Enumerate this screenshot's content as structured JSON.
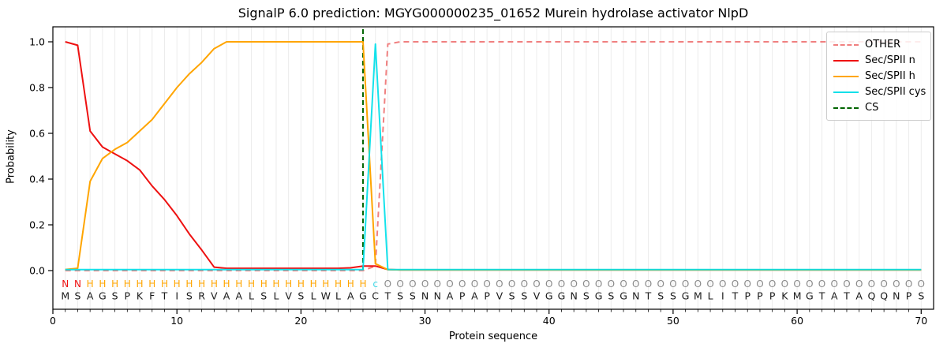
{
  "title": "SignalP 6.0 prediction: MGYG000000235_01652 Murein hydrolase activator NlpD",
  "axes": {
    "x_label": "Protein sequence",
    "y_label": "Probability",
    "x_tick_labels": [
      0,
      10,
      20,
      30,
      40,
      50,
      60,
      70
    ],
    "y_tick_labels": [
      "0.0",
      "0.2",
      "0.4",
      "0.6",
      "0.8",
      "1.0"
    ]
  },
  "legend": {
    "items": [
      {
        "label": "OTHER",
        "color": "#f08080",
        "dashed": true
      },
      {
        "label": "Sec/SPII n",
        "color": "#ee1111",
        "dashed": false
      },
      {
        "label": "Sec/SPII h",
        "color": "#ffa500",
        "dashed": false
      },
      {
        "label": "Sec/SPII cys",
        "color": "#00dfe9",
        "dashed": false
      },
      {
        "label": "CS",
        "color": "#006400",
        "dashed": true
      }
    ]
  },
  "chart_data": {
    "type": "line",
    "x_start": 1,
    "xlim": [
      0,
      71
    ],
    "ylim": [
      -0.17,
      1.07
    ],
    "grid": true,
    "xlabel": "Protein sequence",
    "ylabel": "Probability",
    "x_ticks": [
      0,
      10,
      20,
      30,
      40,
      50,
      60,
      70
    ],
    "y_ticks": [
      0.0,
      0.2,
      0.4,
      0.6,
      0.8,
      1.0
    ],
    "legend_position": "upper right",
    "series": [
      {
        "name": "OTHER",
        "color": "#f08080",
        "dashed": true,
        "values": [
          0,
          0,
          0,
          0,
          0,
          0,
          0,
          0,
          0,
          0,
          0,
          0,
          0,
          0,
          0,
          0,
          0,
          0,
          0,
          0,
          0,
          0,
          0,
          0,
          0,
          0.02,
          0.99,
          1,
          1,
          1,
          1,
          1,
          1,
          1,
          1,
          1,
          1,
          1,
          1,
          1,
          1,
          1,
          1,
          1,
          1,
          1,
          1,
          1,
          1,
          1,
          1,
          1,
          1,
          1,
          1,
          1,
          1,
          1,
          1,
          1,
          1,
          1,
          1,
          1,
          1,
          1,
          1,
          1,
          1,
          1
        ]
      },
      {
        "name": "Sec/SPII n",
        "color": "#ee1111",
        "dashed": false,
        "values": [
          1,
          0.985,
          0.61,
          0.54,
          0.51,
          0.48,
          0.44,
          0.37,
          0.31,
          0.24,
          0.16,
          0.09,
          0.015,
          0.01,
          0.01,
          0.01,
          0.01,
          0.01,
          0.01,
          0.01,
          0.01,
          0.01,
          0.01,
          0.012,
          0.02,
          0.02,
          0.005,
          0.003,
          0.003,
          0.003,
          0.003,
          0.003,
          0.003,
          0.003,
          0.003,
          0.003,
          0.003,
          0.003,
          0.003,
          0.003,
          0.003,
          0.003,
          0.003,
          0.003,
          0.003,
          0.003,
          0.003,
          0.003,
          0.003,
          0.003,
          0.003,
          0.003,
          0.003,
          0.003,
          0.003,
          0.003,
          0.003,
          0.003,
          0.003,
          0.003,
          0.003,
          0.003,
          0.003,
          0.003,
          0.003,
          0.003,
          0.003,
          0.003,
          0.003,
          0.003
        ]
      },
      {
        "name": "Sec/SPII h",
        "color": "#ffa500",
        "dashed": false,
        "values": [
          0.005,
          0.01,
          0.39,
          0.49,
          0.53,
          0.56,
          0.61,
          0.66,
          0.73,
          0.8,
          0.86,
          0.91,
          0.97,
          1,
          1,
          1,
          1,
          1,
          1,
          1,
          1,
          1,
          1,
          1,
          1,
          0.03,
          0.004,
          0.003,
          0.003,
          0.003,
          0.003,
          0.003,
          0.003,
          0.003,
          0.003,
          0.003,
          0.003,
          0.003,
          0.003,
          0.003,
          0.003,
          0.003,
          0.003,
          0.003,
          0.003,
          0.003,
          0.003,
          0.003,
          0.003,
          0.003,
          0.003,
          0.003,
          0.003,
          0.003,
          0.003,
          0.003,
          0.003,
          0.003,
          0.003,
          0.003,
          0.003,
          0.003,
          0.003,
          0.003,
          0.003,
          0.003,
          0.003,
          0.003,
          0.003,
          0.003
        ]
      },
      {
        "name": "Sec/SPII cys",
        "color": "#00dfe9",
        "dashed": false,
        "values": [
          0.004,
          0.004,
          0.004,
          0.004,
          0.004,
          0.004,
          0.004,
          0.004,
          0.004,
          0.004,
          0.004,
          0.004,
          0.004,
          0.004,
          0.004,
          0.004,
          0.004,
          0.004,
          0.004,
          0.004,
          0.004,
          0.004,
          0.004,
          0.004,
          0.004,
          0.99,
          0.005,
          0.004,
          0.004,
          0.004,
          0.004,
          0.004,
          0.004,
          0.004,
          0.004,
          0.004,
          0.004,
          0.004,
          0.004,
          0.004,
          0.004,
          0.004,
          0.004,
          0.004,
          0.004,
          0.004,
          0.004,
          0.004,
          0.004,
          0.004,
          0.004,
          0.004,
          0.004,
          0.004,
          0.004,
          0.004,
          0.004,
          0.004,
          0.004,
          0.004,
          0.004,
          0.004,
          0.004,
          0.004,
          0.004,
          0.004,
          0.004,
          0.004,
          0.004,
          0.004
        ]
      }
    ],
    "cs_line": {
      "label": "CS",
      "position": 25,
      "color": "#006400"
    },
    "sequence": "MSAGSPKFTISRVAALSLVSLWLAGCTSSNNAPAPVSSVGGNSGSGNTSSGMLITPPPKMGTATAQQNPS",
    "annotation": "NNHHHHHHHHHHHHHHHHHHHHHHHcOOOOOOOOOOOOOOOOOOOOOOOOOOOOOOOOOOOOOOOOOOOO",
    "annotation_colors": {
      "N": "#ee1111",
      "H": "#ffa500",
      "c": "#3cd7e5",
      "O": "#8a8a8a"
    }
  },
  "colors": {
    "background": "#ffffff",
    "grid": "#ececec",
    "spine": "#000000",
    "tick_text": "#000000",
    "sequence_text": "#1a1a1a",
    "legend_border": "#cccccc"
  }
}
